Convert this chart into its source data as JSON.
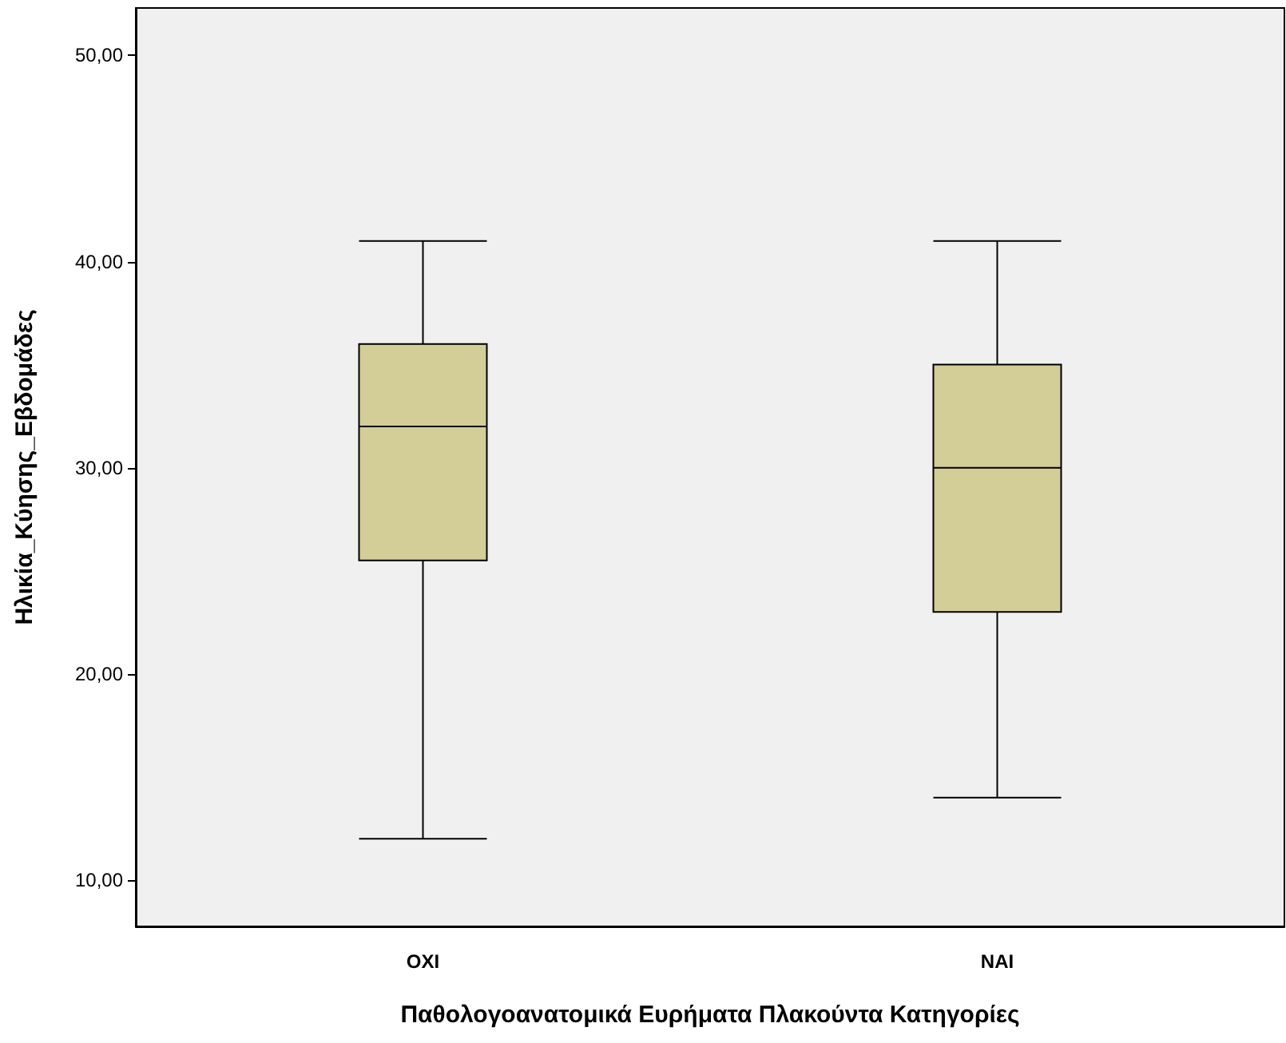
{
  "chart_data": {
    "type": "box",
    "xlabel": "Παθολογοανατομικά Ευρήματα Πλακούντα Κατηγορίες",
    "ylabel": "Ηλικία_Κύησης_Εβδομάδες",
    "categories": [
      "ΟΧΙ",
      "ΝΑΙ"
    ],
    "boxes": [
      {
        "low": 12,
        "q1": 25.5,
        "median": 32,
        "q3": 36,
        "high": 41
      },
      {
        "low": 14,
        "q1": 23,
        "median": 30,
        "q3": 35,
        "high": 41
      }
    ],
    "color": "#d3cd98",
    "ylim": [
      7.75,
      52.3
    ],
    "yticks": [
      {
        "value": 10,
        "label": "10,00"
      },
      {
        "value": 20,
        "label": "20,00"
      },
      {
        "value": 30,
        "label": "30,00"
      },
      {
        "value": 40,
        "label": "40,00"
      },
      {
        "value": 50,
        "label": "50,00"
      }
    ],
    "grid": false
  }
}
